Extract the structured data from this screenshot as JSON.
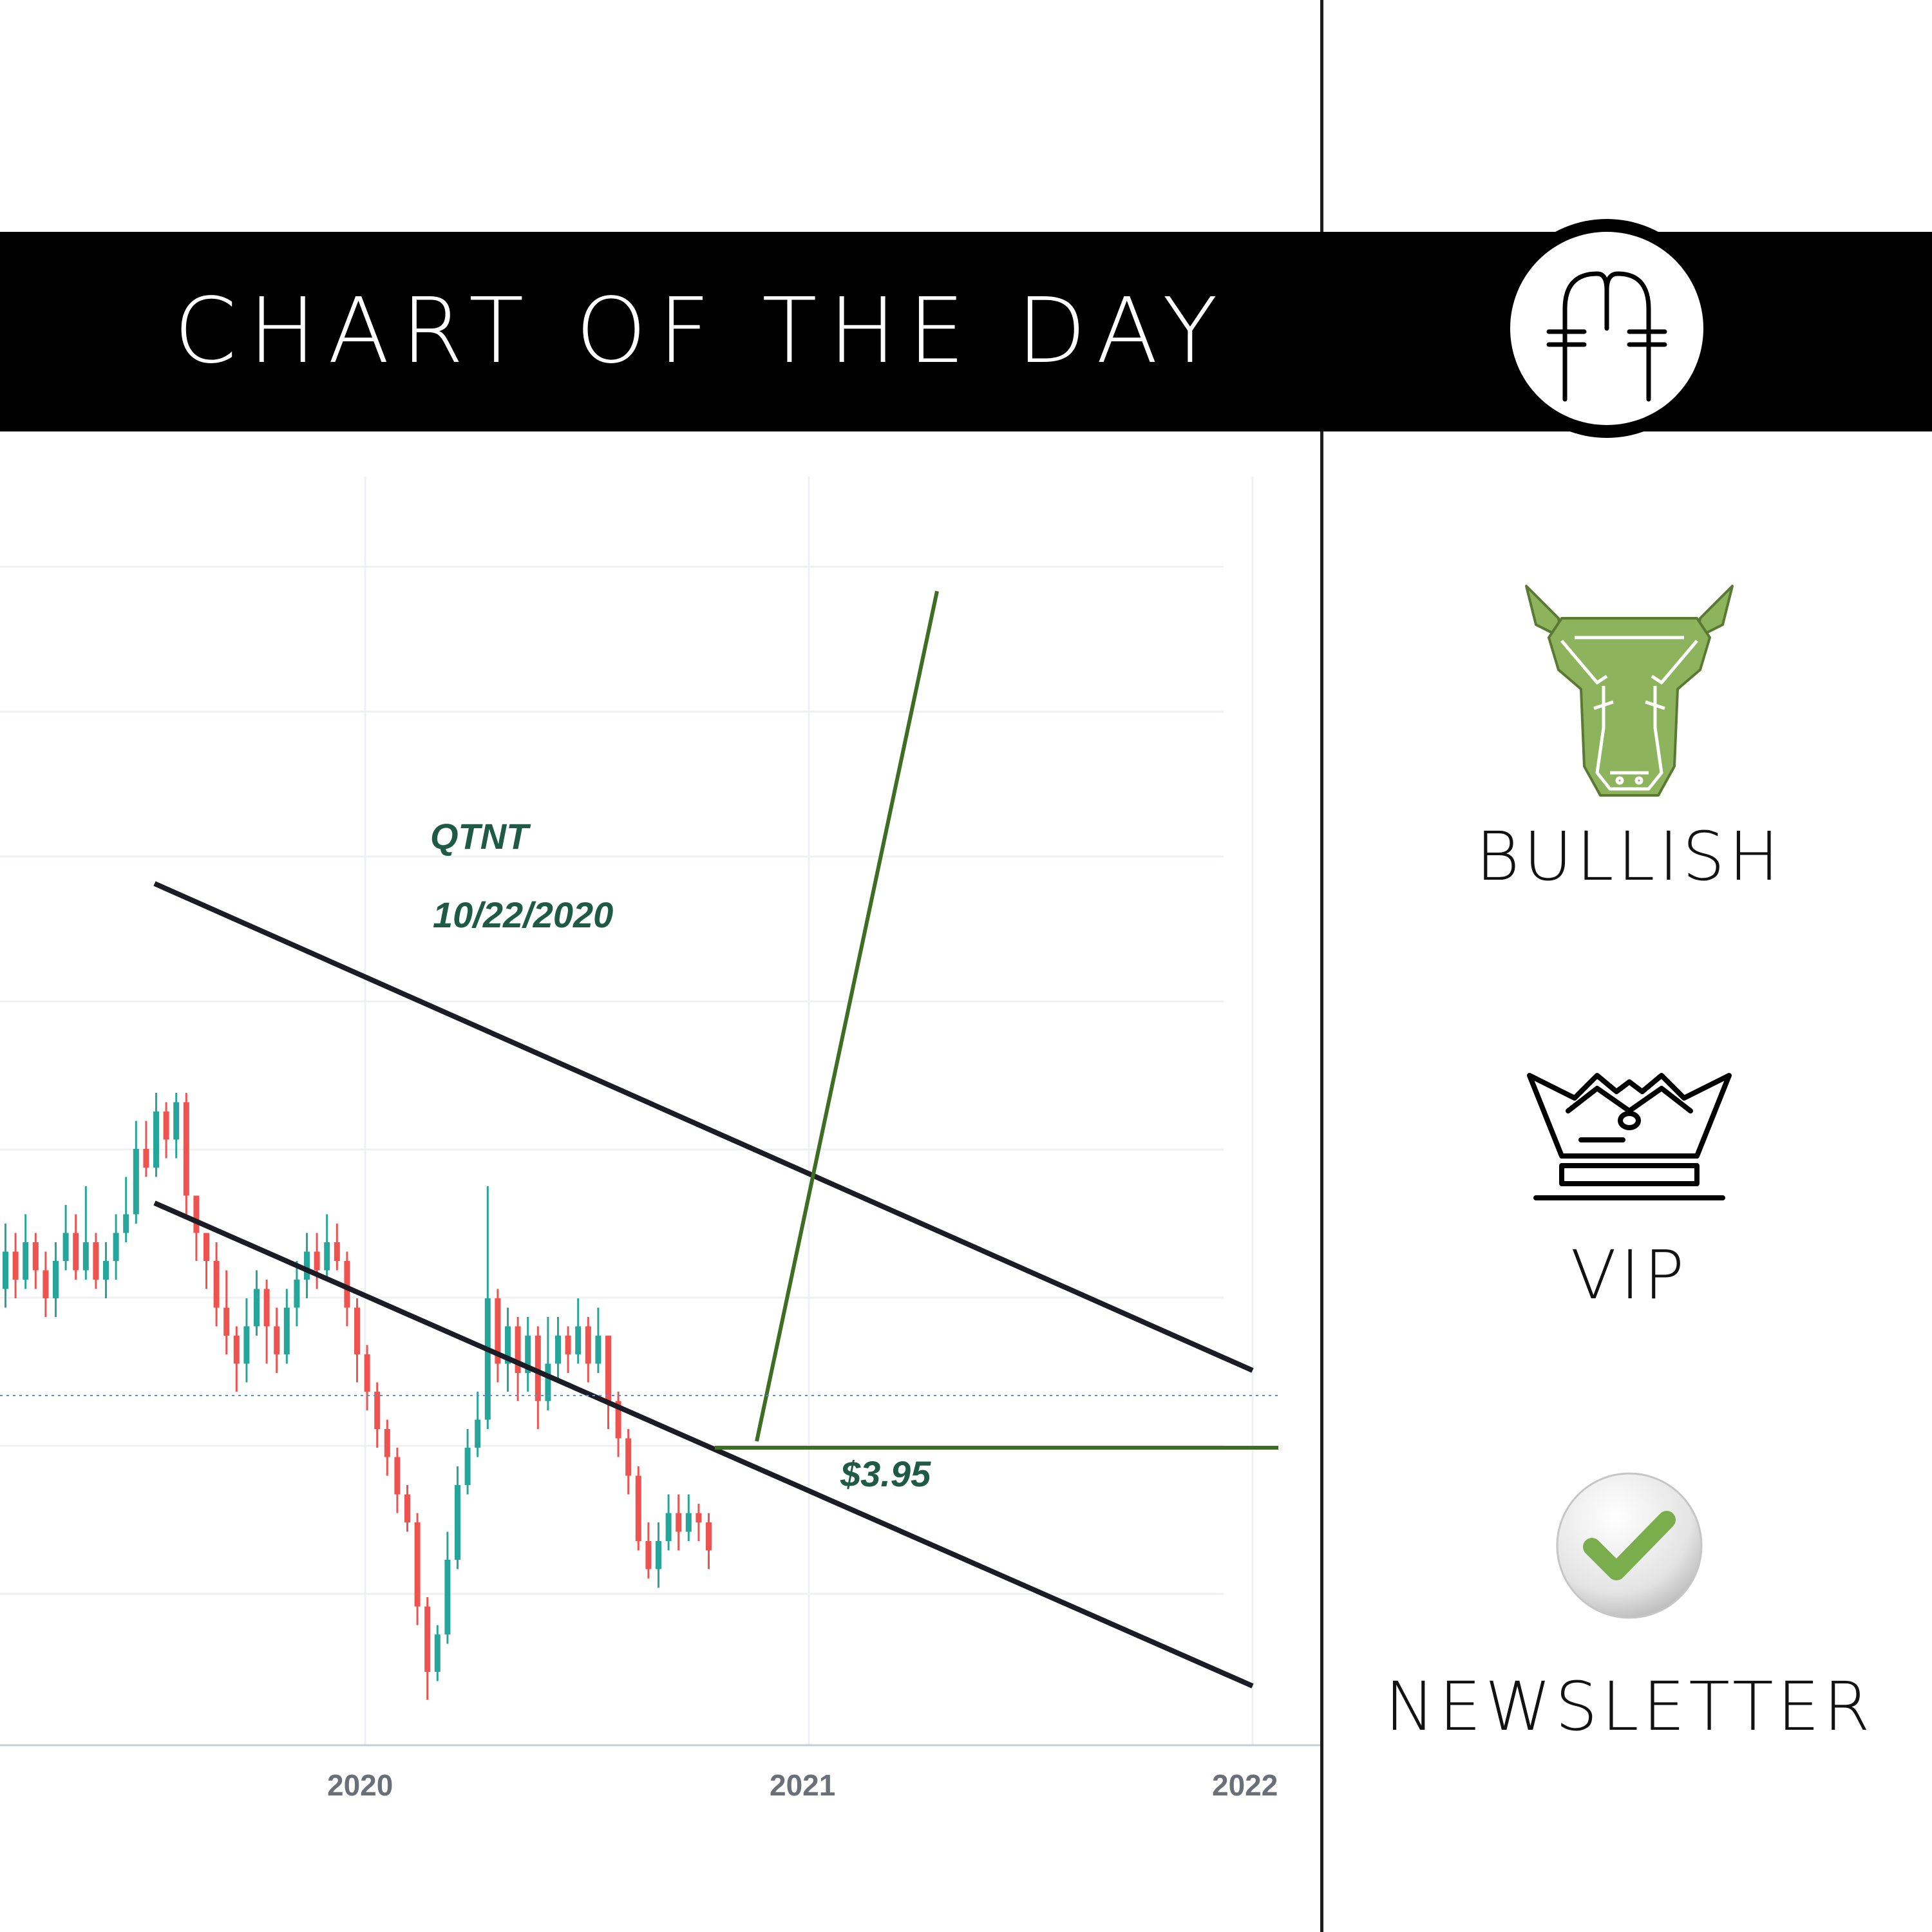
{
  "banner": {
    "title": "CHART OF THE DAY",
    "logo_icon": "ff-monogram-logo"
  },
  "sidebar": {
    "items": [
      {
        "label": "BULLISH",
        "icon": "bull-head-icon"
      },
      {
        "label": "VIP",
        "icon": "crown-icon"
      },
      {
        "label": "NEWSLETTER",
        "icon": "checkmark-icon"
      }
    ]
  },
  "colors": {
    "up": "#26a69a",
    "down": "#ef5350",
    "target_line": "#3d6e24",
    "channel": "#1c1c26",
    "annotation": "#1f5a47",
    "bull_green": "#8db35d",
    "check_green": "#7aae4c"
  },
  "chart_data": {
    "type": "candlestick",
    "ticker": "QTNT",
    "date": "10/22/2020",
    "price_label": "$3.95",
    "support_price": 3.95,
    "x_ticks": [
      "2020",
      "2021",
      "2022"
    ],
    "grid": true,
    "candles": [
      {
        "o": 4.8,
        "c": 5.0,
        "h": 5.15,
        "l": 4.7
      },
      {
        "o": 5.0,
        "c": 4.85,
        "h": 5.1,
        "l": 4.75
      },
      {
        "o": 4.85,
        "c": 5.05,
        "h": 5.2,
        "l": 4.8
      },
      {
        "o": 5.05,
        "c": 4.9,
        "h": 5.1,
        "l": 4.8
      },
      {
        "o": 4.9,
        "c": 4.75,
        "h": 5.0,
        "l": 4.65
      },
      {
        "o": 4.75,
        "c": 4.95,
        "h": 5.05,
        "l": 4.65
      },
      {
        "o": 4.95,
        "c": 5.1,
        "h": 5.25,
        "l": 4.9
      },
      {
        "o": 5.1,
        "c": 4.9,
        "h": 5.2,
        "l": 4.85
      },
      {
        "o": 4.9,
        "c": 5.05,
        "h": 5.35,
        "l": 4.85
      },
      {
        "o": 5.05,
        "c": 4.85,
        "h": 5.1,
        "l": 4.8
      },
      {
        "o": 4.85,
        "c": 4.95,
        "h": 5.05,
        "l": 4.75
      },
      {
        "o": 4.95,
        "c": 5.1,
        "h": 5.2,
        "l": 4.85
      },
      {
        "o": 5.1,
        "c": 5.2,
        "h": 5.4,
        "l": 5.05
      },
      {
        "o": 5.2,
        "c": 5.55,
        "h": 5.7,
        "l": 5.15
      },
      {
        "o": 5.55,
        "c": 5.45,
        "h": 5.7,
        "l": 5.4
      },
      {
        "o": 5.45,
        "c": 5.75,
        "h": 5.85,
        "l": 5.4
      },
      {
        "o": 5.75,
        "c": 5.6,
        "h": 5.8,
        "l": 5.5
      },
      {
        "o": 5.6,
        "c": 5.8,
        "h": 5.85,
        "l": 5.5
      },
      {
        "o": 5.8,
        "c": 5.3,
        "h": 5.85,
        "l": 5.2
      },
      {
        "o": 5.3,
        "c": 5.1,
        "h": 5.3,
        "l": 4.95
      },
      {
        "o": 5.1,
        "c": 4.95,
        "h": 5.1,
        "l": 4.8
      },
      {
        "o": 4.95,
        "c": 4.7,
        "h": 5.05,
        "l": 4.6
      },
      {
        "o": 4.7,
        "c": 4.55,
        "h": 4.9,
        "l": 4.45
      },
      {
        "o": 4.55,
        "c": 4.4,
        "h": 4.6,
        "l": 4.25
      },
      {
        "o": 4.4,
        "c": 4.6,
        "h": 4.75,
        "l": 4.3
      },
      {
        "o": 4.6,
        "c": 4.8,
        "h": 4.9,
        "l": 4.55
      },
      {
        "o": 4.8,
        "c": 4.6,
        "h": 4.85,
        "l": 4.4
      },
      {
        "o": 4.6,
        "c": 4.45,
        "h": 4.7,
        "l": 4.35
      },
      {
        "o": 4.45,
        "c": 4.7,
        "h": 4.8,
        "l": 4.4
      },
      {
        "o": 4.7,
        "c": 4.85,
        "h": 4.95,
        "l": 4.6
      },
      {
        "o": 4.85,
        "c": 5.0,
        "h": 5.1,
        "l": 4.75
      },
      {
        "o": 5.0,
        "c": 4.9,
        "h": 5.1,
        "l": 4.8
      },
      {
        "o": 4.9,
        "c": 5.05,
        "h": 5.2,
        "l": 4.85
      },
      {
        "o": 5.05,
        "c": 4.95,
        "h": 5.15,
        "l": 4.9
      },
      {
        "o": 4.95,
        "c": 4.7,
        "h": 5.0,
        "l": 4.6
      },
      {
        "o": 4.7,
        "c": 4.45,
        "h": 4.75,
        "l": 4.3
      },
      {
        "o": 4.45,
        "c": 4.25,
        "h": 4.5,
        "l": 4.15
      },
      {
        "o": 4.25,
        "c": 4.05,
        "h": 4.3,
        "l": 3.95
      },
      {
        "o": 4.05,
        "c": 3.9,
        "h": 4.1,
        "l": 3.8
      },
      {
        "o": 3.9,
        "c": 3.7,
        "h": 3.95,
        "l": 3.6
      },
      {
        "o": 3.7,
        "c": 3.55,
        "h": 3.75,
        "l": 3.5
      },
      {
        "o": 3.55,
        "c": 3.1,
        "h": 3.6,
        "l": 3.0
      },
      {
        "o": 3.1,
        "c": 2.75,
        "h": 3.15,
        "l": 2.6
      },
      {
        "o": 2.75,
        "c": 2.95,
        "h": 3.0,
        "l": 2.7
      },
      {
        "o": 2.95,
        "c": 3.35,
        "h": 3.5,
        "l": 2.9
      },
      {
        "o": 3.35,
        "c": 3.75,
        "h": 3.85,
        "l": 3.3
      },
      {
        "o": 3.75,
        "c": 3.95,
        "h": 4.05,
        "l": 3.7
      },
      {
        "o": 3.95,
        "c": 4.1,
        "h": 4.25,
        "l": 3.9
      },
      {
        "o": 4.1,
        "c": 4.75,
        "h": 5.35,
        "l": 4.05
      },
      {
        "o": 4.75,
        "c": 4.4,
        "h": 4.8,
        "l": 4.3
      },
      {
        "o": 4.4,
        "c": 4.6,
        "h": 4.7,
        "l": 4.25
      },
      {
        "o": 4.6,
        "c": 4.35,
        "h": 4.65,
        "l": 4.2
      },
      {
        "o": 4.35,
        "c": 4.55,
        "h": 4.65,
        "l": 4.25
      },
      {
        "o": 4.55,
        "c": 4.2,
        "h": 4.6,
        "l": 4.05
      },
      {
        "o": 4.2,
        "c": 4.4,
        "h": 4.65,
        "l": 4.15
      },
      {
        "o": 4.4,
        "c": 4.55,
        "h": 4.65,
        "l": 4.3
      },
      {
        "o": 4.55,
        "c": 4.45,
        "h": 4.6,
        "l": 4.35
      },
      {
        "o": 4.45,
        "c": 4.6,
        "h": 4.75,
        "l": 4.4
      },
      {
        "o": 4.6,
        "c": 4.4,
        "h": 4.65,
        "l": 4.3
      },
      {
        "o": 4.4,
        "c": 4.55,
        "h": 4.7,
        "l": 4.35
      },
      {
        "o": 4.55,
        "c": 4.2,
        "h": 4.55,
        "l": 4.05
      },
      {
        "o": 4.2,
        "c": 4.0,
        "h": 4.25,
        "l": 3.9
      },
      {
        "o": 4.0,
        "c": 3.8,
        "h": 4.05,
        "l": 3.7
      },
      {
        "o": 3.8,
        "c": 3.45,
        "h": 3.85,
        "l": 3.4
      },
      {
        "o": 3.45,
        "c": 3.3,
        "h": 3.55,
        "l": 3.25
      },
      {
        "o": 3.3,
        "c": 3.45,
        "h": 3.55,
        "l": 3.2
      },
      {
        "o": 3.45,
        "c": 3.6,
        "h": 3.7,
        "l": 3.4
      },
      {
        "o": 3.6,
        "c": 3.5,
        "h": 3.7,
        "l": 3.4
      },
      {
        "o": 3.5,
        "c": 3.6,
        "h": 3.7,
        "l": 3.45
      },
      {
        "o": 3.6,
        "c": 3.55,
        "h": 3.65,
        "l": 3.45
      },
      {
        "o": 3.55,
        "c": 3.4,
        "h": 3.6,
        "l": 3.3
      }
    ]
  }
}
